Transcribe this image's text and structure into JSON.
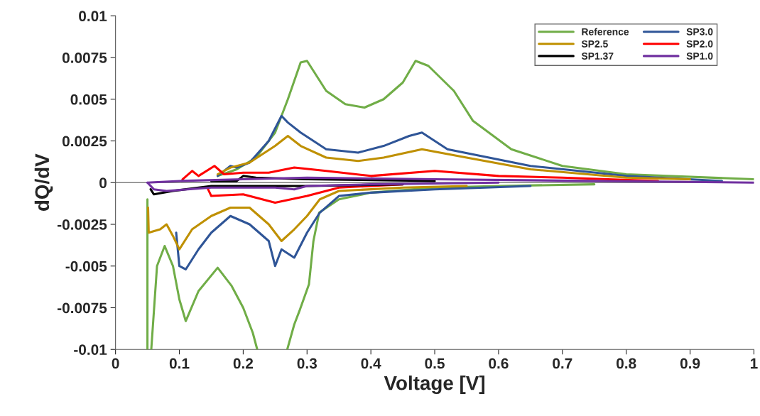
{
  "chart_data": {
    "type": "line",
    "xlabel": "Voltage [V]",
    "ylabel": "dQ/dV",
    "xlim": [
      0,
      1
    ],
    "ylim": [
      -0.01,
      0.01
    ],
    "xticks": [
      0,
      0.1,
      0.2,
      0.3,
      0.4,
      0.5,
      0.6,
      0.7,
      0.8,
      0.9,
      1
    ],
    "yticks": [
      -0.01,
      -0.0075,
      -0.005,
      -0.0025,
      0,
      0.0025,
      0.005,
      0.0075,
      0.01
    ],
    "grid": false,
    "legend": "top right",
    "line_style": "solid",
    "marker": "none",
    "ref_lines": [
      {
        "axis": "y",
        "value": 0,
        "color": "#808080"
      }
    ],
    "series": [
      {
        "name": "Reference",
        "color": "#70ad47",
        "x": [
          1.0,
          0.8,
          0.7,
          0.62,
          0.56,
          0.53,
          0.49,
          0.47,
          0.45,
          0.42,
          0.39,
          0.36,
          0.33,
          0.3,
          0.29,
          0.27,
          0.25,
          0.22,
          0.19,
          0.16
        ],
        "values": [
          0.0002,
          0.0005,
          0.001,
          0.002,
          0.0037,
          0.0055,
          0.007,
          0.0073,
          0.006,
          0.005,
          0.0045,
          0.0047,
          0.0055,
          0.0073,
          0.0072,
          0.005,
          0.003,
          0.0015,
          0.0008,
          0.0004
        ]
      },
      {
        "color": "#70ad47",
        "x": [
          0.05,
          0.05,
          0.052,
          0.056,
          0.065,
          0.077,
          0.09,
          0.1,
          0.11,
          0.13,
          0.16,
          0.182,
          0.2,
          0.215,
          0.222,
          0.235,
          0.269,
          0.28,
          0.289,
          0.303,
          0.31,
          0.319,
          0.35,
          0.4,
          0.5,
          0.6,
          0.75
        ],
        "values": [
          -0.001,
          -0.01,
          null,
          -0.01,
          -0.005,
          -0.0038,
          -0.005,
          -0.007,
          -0.0083,
          -0.0065,
          -0.0051,
          -0.0062,
          -0.0075,
          -0.009,
          -0.01,
          null,
          -0.01,
          -0.0085,
          -0.0076,
          -0.0061,
          -0.0035,
          -0.0018,
          -0.001,
          -0.0006,
          -0.0003,
          -0.0002,
          -0.0001
        ]
      },
      {
        "name": "SP3.0",
        "color": "#2f5597",
        "x": [
          0.95,
          0.8,
          0.65,
          0.52,
          0.48,
          0.46,
          0.42,
          0.38,
          0.33,
          0.29,
          0.27,
          0.26,
          0.24,
          0.21,
          0.19,
          0.18,
          0.16
        ],
        "values": [
          0.0001,
          0.0004,
          0.001,
          0.002,
          0.003,
          0.0028,
          0.0022,
          0.0018,
          0.002,
          0.003,
          0.0036,
          0.004,
          0.0025,
          0.0012,
          0.0009,
          0.001,
          0.0004
        ]
      },
      {
        "color": "#2f5597",
        "x": [
          0.095,
          0.1,
          0.11,
          0.13,
          0.15,
          0.18,
          0.21,
          0.24,
          0.25,
          0.26,
          0.28,
          0.3,
          0.32,
          0.35,
          0.4,
          0.5,
          0.65
        ],
        "values": [
          -0.003,
          -0.005,
          -0.0052,
          -0.004,
          -0.003,
          -0.002,
          -0.0025,
          -0.0035,
          -0.005,
          -0.004,
          -0.0045,
          -0.003,
          -0.0018,
          -0.0008,
          -0.0006,
          -0.0004,
          -0.0002
        ]
      },
      {
        "name": "SP2.5",
        "color": "#bf9000",
        "x": [
          0.9,
          0.8,
          0.65,
          0.55,
          0.48,
          0.42,
          0.38,
          0.33,
          0.29,
          0.27,
          0.25,
          0.21,
          0.18,
          0.16
        ],
        "values": [
          0.0002,
          0.0003,
          0.0008,
          0.0015,
          0.002,
          0.0015,
          0.0013,
          0.0015,
          0.0022,
          0.0028,
          0.0022,
          0.0012,
          0.0009,
          0.0005
        ]
      },
      {
        "color": "#bf9000",
        "x": [
          0.051,
          0.052,
          0.07,
          0.08,
          0.09,
          0.1,
          0.12,
          0.15,
          0.18,
          0.21,
          0.24,
          0.26,
          0.28,
          0.3,
          0.32,
          0.35,
          0.45,
          0.55
        ],
        "values": [
          -0.0015,
          -0.003,
          -0.0028,
          -0.0025,
          -0.0032,
          -0.004,
          -0.0028,
          -0.002,
          -0.0015,
          -0.0015,
          -0.0025,
          -0.0035,
          -0.0028,
          -0.002,
          -0.001,
          -0.0005,
          -0.0003,
          -0.0002
        ]
      },
      {
        "name": "SP2.0",
        "color": "#ff0000",
        "x": [
          0.85,
          0.7,
          0.6,
          0.5,
          0.4,
          0.33,
          0.28,
          0.24,
          0.2,
          0.17,
          0.155,
          0.13,
          0.12,
          0.105
        ],
        "values": [
          0.0001,
          0.0003,
          0.0004,
          0.0007,
          0.0004,
          0.0007,
          0.0009,
          0.0006,
          0.0006,
          0.0005,
          0.001,
          0.0004,
          0.0007,
          0.0002
        ]
      },
      {
        "color": "#ff0000",
        "x": [
          0.145,
          0.15,
          0.2,
          0.25,
          0.3,
          0.35,
          0.45
        ],
        "values": [
          -0.0004,
          -0.0008,
          -0.0007,
          -0.0012,
          -0.0008,
          -0.0003,
          -0.0001
        ]
      },
      {
        "name": "SP1.37",
        "color": "#000000",
        "x": [
          0.5,
          0.3,
          0.22,
          0.2,
          0.19,
          0.15
        ],
        "values": [
          0.0001,
          0.0002,
          0.0003,
          0.0004,
          0.0001,
          0.0001
        ]
      },
      {
        "color": "#000000",
        "x": [
          0.055,
          0.06,
          0.09,
          0.15,
          0.3,
          0.45
        ],
        "values": [
          -0.0004,
          -0.0007,
          -0.0005,
          -0.0002,
          -0.0002,
          -0.0001
        ]
      },
      {
        "name": "SP1.0",
        "color": "#7030a0",
        "x": [
          1.0,
          0.5,
          0.3,
          0.2,
          0.1,
          0.05
        ],
        "values": [
          0,
          0.0002,
          0.0003,
          0.0002,
          0.0001,
          0
        ]
      },
      {
        "color": "#7030a0",
        "x": [
          0.05,
          0.06,
          0.08,
          0.15,
          0.25,
          0.28,
          0.3,
          0.4,
          0.6
        ],
        "values": [
          0,
          -0.0004,
          -0.0005,
          -0.0003,
          -0.0003,
          -0.0004,
          -0.0002,
          -0.0001,
          0
        ]
      }
    ]
  }
}
